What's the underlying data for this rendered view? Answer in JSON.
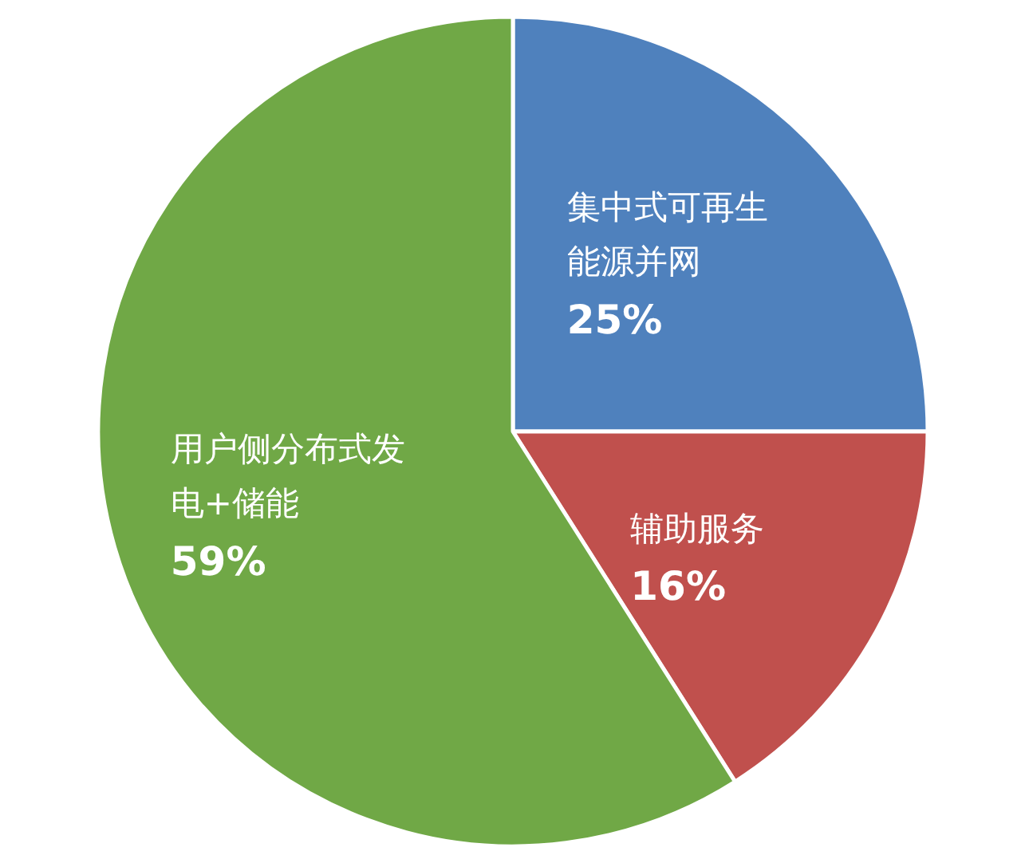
{
  "chart_data": {
    "type": "pie",
    "categories": [
      "集中式可再生能源并网",
      "辅助服务",
      "用户侧分布式发电+储能"
    ],
    "values": [
      25,
      16,
      59
    ],
    "colors": [
      "#4f81bd",
      "#c0504d",
      "#70a846"
    ],
    "value_labels": [
      "25%",
      "16%",
      "59%"
    ]
  }
}
